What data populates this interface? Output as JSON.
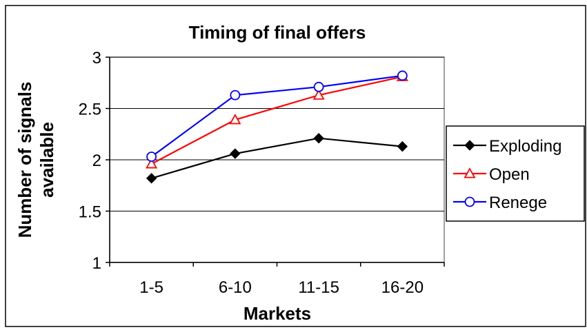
{
  "chart_data": {
    "type": "line",
    "title": "Timing of final offers",
    "xlabel": "Markets",
    "ylabel_lines": [
      "Number of signals",
      "available"
    ],
    "categories": [
      "1-5",
      "6-10",
      "11-15",
      "16-20"
    ],
    "ylim": [
      1,
      3
    ],
    "yticks": [
      "1",
      "1.5",
      "2",
      "2.5",
      "3"
    ],
    "grid": "horizontal",
    "legend_position": "right",
    "series": [
      {
        "name": "Exploding",
        "color": "#000000",
        "marker": "diamond",
        "values": [
          1.82,
          2.06,
          2.21,
          2.13
        ]
      },
      {
        "name": "Open",
        "color": "#ff0000",
        "marker": "triangle",
        "values": [
          1.96,
          2.39,
          2.63,
          2.81
        ]
      },
      {
        "name": "Renege",
        "color": "#0000ff",
        "marker": "circle",
        "values": [
          2.03,
          2.63,
          2.71,
          2.82
        ]
      }
    ]
  }
}
